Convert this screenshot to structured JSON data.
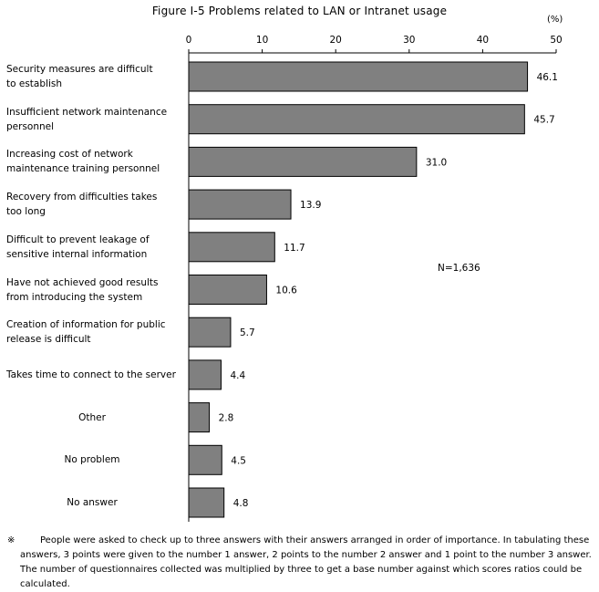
{
  "chart_data": {
    "type": "bar",
    "orientation": "horizontal",
    "title": "Figure I-5 Problems related to LAN or Intranet usage",
    "unit": "(%)",
    "xlim": [
      0,
      50
    ],
    "ticks": [
      "0",
      "10",
      "20",
      "30",
      "40",
      "50"
    ],
    "categories": [
      "Security measures are difficult\nto establish",
      "Insufficient network maintenance\npersonnel",
      "Increasing cost of network\nmaintenance training personnel",
      "Recovery from difficulties takes\ntoo long",
      "Difficult to prevent leakage of\nsensitive internal information",
      "Have not achieved good results\nfrom introducing the system",
      "Creation of information for public\nrelease is difficult",
      "Takes time to connect to the server",
      "Other",
      "No problem",
      "No answer"
    ],
    "values": [
      46.1,
      45.7,
      31.0,
      13.9,
      11.7,
      10.6,
      5.7,
      4.4,
      2.8,
      4.5,
      4.8
    ],
    "value_labels": [
      "46.1",
      "45.7",
      "31.0",
      "13.9",
      "11.7",
      "10.6",
      "5.7",
      "4.4",
      "2.8",
      "4.5",
      "4.8"
    ],
    "annotation": "N=1,636",
    "bar_color": "#808080"
  },
  "footnote": {
    "mark": "※",
    "text": "People were asked to check up to three answers with their answers arranged in order of importance. In tabulating these answers, 3 points were given to the number 1 answer, 2 points to the number 2 answer and 1 point to the number 3 answer. The number of questionnaires collected was multiplied by three to get a base number against which scores ratios could be calculated."
  }
}
